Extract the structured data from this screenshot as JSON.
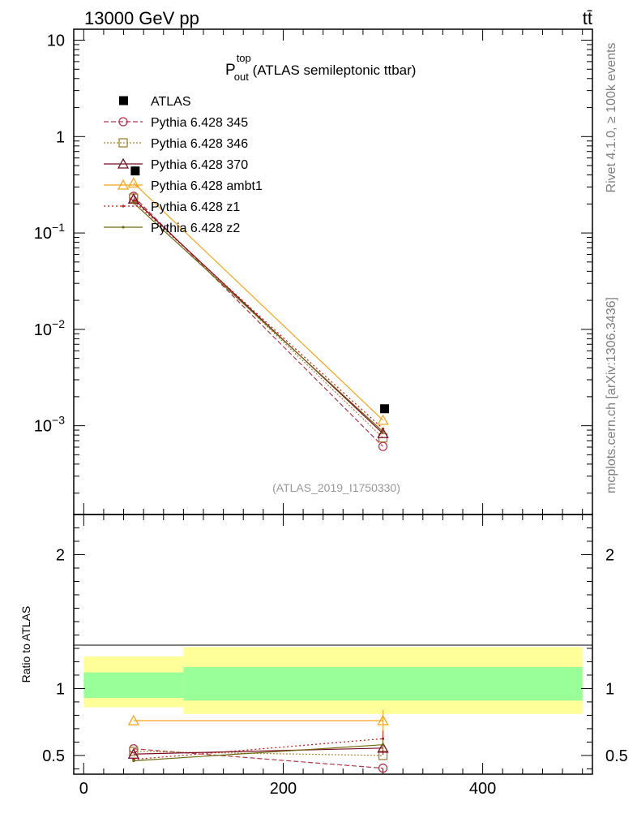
{
  "header": {
    "left": "13000 GeV pp",
    "right": "tt̄"
  },
  "side_labels": {
    "rivet": "Rivet 4.1.0, ≥ 100k events",
    "site": "mcplots.cern.ch [arXiv:1306.3436]"
  },
  "chart_data": [
    {
      "type": "line",
      "title": {
        "base": "P",
        "sup": "top",
        "sub": "out",
        "rest": " (ATLAS semileptonic ttbar)"
      },
      "watermark": "(ATLAS_2019_I1750330)",
      "yscale": "log",
      "ylim": [
        0.00012,
        13
      ],
      "xlim": [
        -10,
        510
      ],
      "ytick_labels": [
        {
          "v": 10,
          "label": "10",
          "sup": ""
        },
        {
          "v": 1,
          "label": "1",
          "sup": ""
        },
        {
          "v": 0.1,
          "label": "10",
          "sup": "−1"
        },
        {
          "v": 0.01,
          "label": "10",
          "sup": "−2"
        },
        {
          "v": 0.001,
          "label": "10",
          "sup": "−3"
        }
      ],
      "legend": {
        "position": "top-left"
      },
      "reference": {
        "name": "ATLAS",
        "x": [
          50,
          300
        ],
        "y": [
          0.44,
          0.0015
        ],
        "color": "#000000"
      },
      "series": [
        {
          "name": "Pythia 6.428 345",
          "x": [
            50,
            300
          ],
          "y": [
            0.24,
            0.00061
          ],
          "color": "#b2374a",
          "dash": "6,3",
          "marker": "circle"
        },
        {
          "name": "Pythia 6.428 346",
          "x": [
            50,
            300
          ],
          "y": [
            0.23,
            0.00075
          ],
          "color": "#a58236",
          "dash": "2,2",
          "marker": "square"
        },
        {
          "name": "Pythia 6.428 370",
          "x": [
            50,
            300
          ],
          "y": [
            0.225,
            0.00083
          ],
          "color": "#7a0a23",
          "dash": "",
          "marker": "triangle"
        },
        {
          "name": "Pythia 6.428 ambt1",
          "x": [
            50,
            300
          ],
          "y": [
            0.33,
            0.00114
          ],
          "color": "#f3a51c",
          "dash": "",
          "marker": "triangle"
        },
        {
          "name": "Pythia 6.428 z1",
          "x": [
            50,
            300
          ],
          "y": [
            0.215,
            0.00093
          ],
          "color": "#c21818",
          "dash": "2,3",
          "marker": "dot"
        },
        {
          "name": "Pythia 6.428 z2",
          "x": [
            50,
            300
          ],
          "y": [
            0.205,
            0.00087
          ],
          "color": "#6b6b10",
          "dash": "",
          "marker": "dot"
        }
      ]
    },
    {
      "type": "line",
      "ylabel": "Ratio to ATLAS",
      "ylim": [
        0.36,
        2.3
      ],
      "xlim": [
        -10,
        510
      ],
      "ytick_labels": [
        0.5,
        1,
        2
      ],
      "xtick_labels": [
        0,
        200,
        400
      ],
      "bands": [
        {
          "x0": 0,
          "x1": 100,
          "inner": [
            0.93,
            1.12
          ],
          "outer": [
            0.86,
            1.24
          ]
        },
        {
          "x0": 100,
          "x1": 500,
          "inner": [
            0.91,
            1.16
          ],
          "outer": [
            0.81,
            1.31
          ]
        }
      ],
      "band_colors": {
        "inner": "#99ff99",
        "outer": "#ffff99"
      },
      "series": [
        {
          "name": "Pythia 6.428 345",
          "x": [
            50,
            300
          ],
          "y": [
            0.55,
            0.405
          ],
          "color": "#b2374a",
          "dash": "6,3",
          "marker": "circle",
          "err": [
            0,
            0
          ]
        },
        {
          "name": "Pythia 6.428 346",
          "x": [
            50,
            300
          ],
          "y": [
            0.53,
            0.5
          ],
          "color": "#a58236",
          "dash": "2,2",
          "marker": "square",
          "err": [
            0,
            0
          ]
        },
        {
          "name": "Pythia 6.428 370",
          "x": [
            50,
            300
          ],
          "y": [
            0.51,
            0.555
          ],
          "color": "#7a0a23",
          "dash": "",
          "marker": "triangle",
          "err": [
            0,
            0.05
          ]
        },
        {
          "name": "Pythia 6.428 ambt1",
          "x": [
            50,
            300
          ],
          "y": [
            0.76,
            0.76
          ],
          "color": "#f3a51c",
          "dash": "",
          "marker": "triangle",
          "err": [
            0,
            0.08
          ]
        },
        {
          "name": "Pythia 6.428 z1",
          "x": [
            50,
            300
          ],
          "y": [
            0.47,
            0.625
          ],
          "color": "#c21818",
          "dash": "2,3",
          "marker": "dot",
          "err": [
            0,
            0.06
          ]
        },
        {
          "name": "Pythia 6.428 z2",
          "x": [
            50,
            300
          ],
          "y": [
            0.46,
            0.58
          ],
          "color": "#6b6b10",
          "dash": "",
          "marker": "dot",
          "err": [
            0,
            0.04
          ]
        }
      ]
    }
  ]
}
